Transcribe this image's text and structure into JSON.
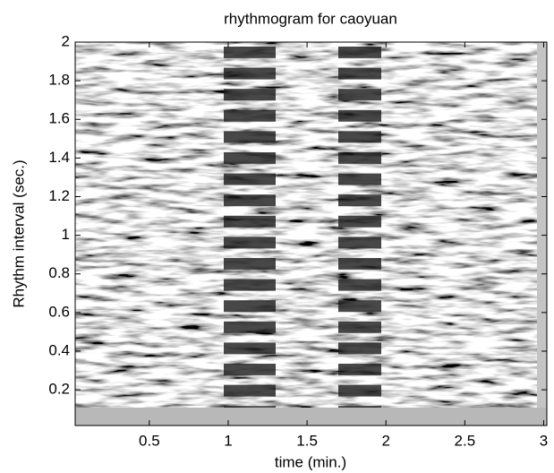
{
  "chart_data": {
    "type": "image",
    "title": "rhythmogram for caoyuan",
    "xlabel": "time (min.)",
    "ylabel": "Rhythm interval (sec.)",
    "xlim": [
      0.03,
      3.02
    ],
    "xticks": [
      0.5,
      1,
      1.5,
      2,
      2.5,
      3
    ],
    "ylim": [
      0.015,
      2
    ],
    "yticks": [
      0.2,
      0.4,
      0.6,
      0.8,
      1,
      1.2,
      1.4,
      1.6,
      1.8,
      2
    ],
    "colormap": "gray"
  }
}
